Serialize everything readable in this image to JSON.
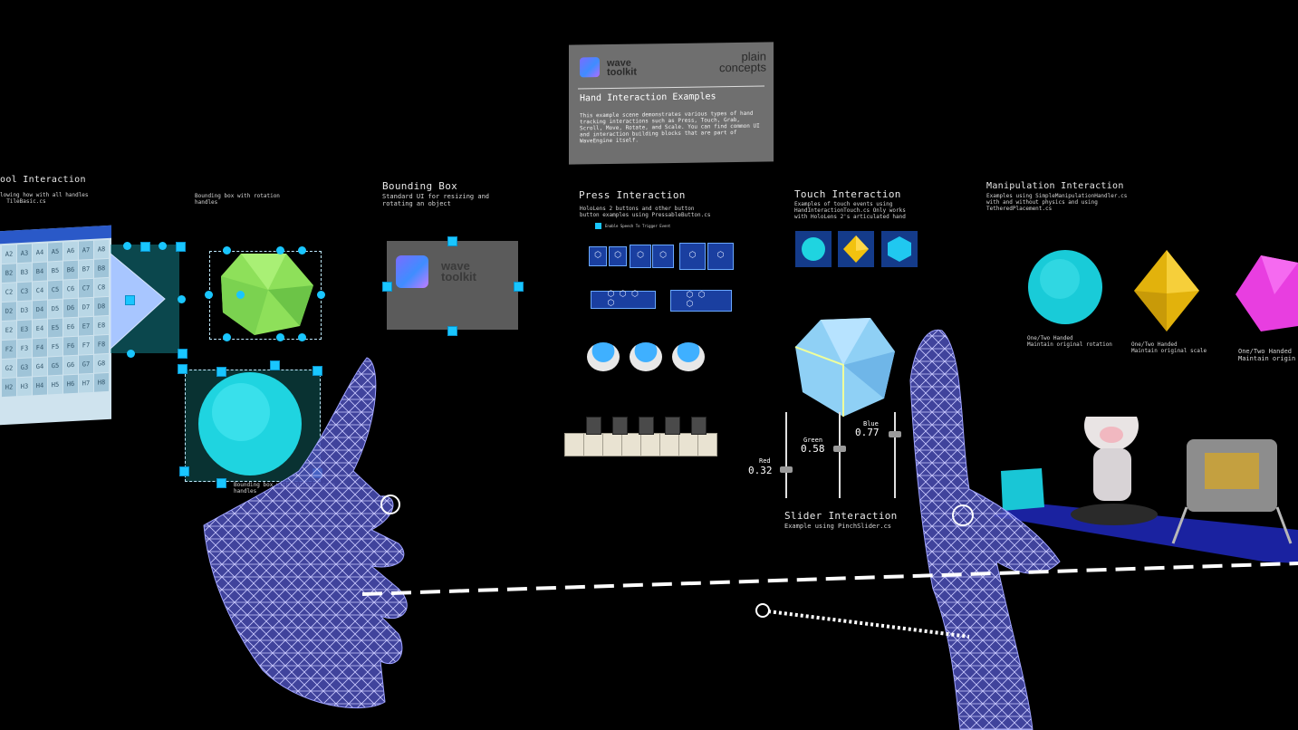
{
  "info_panel": {
    "logo_line1": "wave",
    "logo_line2": "toolkit",
    "brand_line1": "plain",
    "brand_line2": "concepts",
    "title": "Hand Interaction Examples",
    "description": "This example scene demonstrates various types of hand\ntracking interactions such as Press, Touch, Grab,\nScroll, Move, Rotate, and Scale. You can find common UI\nand interaction building blocks that are part of\nWaveEngine itself."
  },
  "bounding_section": {
    "title": "Bounding Box",
    "description": "Standard UI for resizing and\nrotating an object",
    "left_title": "ool Interaction",
    "left_desc": "lowing how with all handles\n  TileBasic.cs",
    "rotation_desc": "Bounding box with rotation\nhandles",
    "uniform_desc": "Bounding box with uniform scale\nhandles"
  },
  "press_section": {
    "title": "Press Interaction",
    "description": "HoloLens 2 buttons and other button\nbutton examples using PressableButton.cs",
    "toggle_label": "Enable Speech To Trigger Event"
  },
  "touch_section": {
    "title": "Touch Interaction",
    "description": "Examples of touch events using\nHandInteractionTouch.cs Only works\nwith HoloLens 2's articulated hand"
  },
  "manipulation_section": {
    "title": "Manipulation Interaction",
    "description": "Examples using SimpleManipulationHandler.cs\nwith and without physics and using\nTetheredPlacement.cs",
    "caption1": "One/Two Handed\nMaintain original rotation",
    "caption2": "One/Two Handed\nMaintain original scale",
    "caption3": "One/Two Handed\nMaintain origin"
  },
  "slider_section": {
    "title": "Slider Interaction",
    "description": "Example using PinchSlider.cs",
    "red_label": "Red",
    "red_value": "0.32",
    "green_label": "Green",
    "green_value": "0.58",
    "blue_label": "Blue",
    "blue_value": "0.77"
  },
  "grid_cells": [
    [
      "A2",
      "A3",
      "A4",
      "A5",
      "A6",
      "A7",
      "A8"
    ],
    [
      "B2",
      "B3",
      "B4",
      "B5",
      "B6",
      "B7",
      "B8"
    ],
    [
      "C2",
      "C3",
      "C4",
      "C5",
      "C6",
      "C7",
      "C8"
    ],
    [
      "D2",
      "D3",
      "D4",
      "D5",
      "D6",
      "D7",
      "D8"
    ],
    [
      "E2",
      "E3",
      "E4",
      "E5",
      "E6",
      "E7",
      "E8"
    ],
    [
      "F2",
      "F3",
      "F4",
      "F5",
      "F6",
      "F7",
      "F8"
    ],
    [
      "G2",
      "G3",
      "G4",
      "G5",
      "G6",
      "G7",
      "G8"
    ],
    [
      "H2",
      "H3",
      "H4",
      "H5",
      "H6",
      "H7",
      "H8"
    ]
  ],
  "bb_panel": {
    "logo_line1": "wave",
    "logo_line2": "toolkit"
  },
  "colors": {
    "handle": "#19c6ff",
    "hand_mesh": "#5a5fd0",
    "button_blue": "#1a3fa0"
  }
}
